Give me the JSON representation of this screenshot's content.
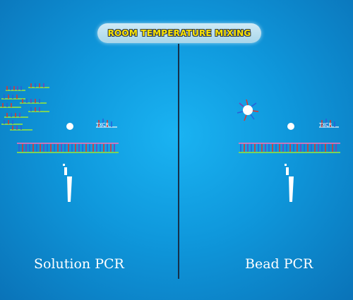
{
  "header": {
    "title": "ROOM TEMPERATURE MIXING"
  },
  "panels": [
    {
      "label": "Solution PCR",
      "primer_tag": "TXCR"
    },
    {
      "label": "Bead PCR",
      "primer_tag": "TXCR"
    }
  ],
  "colors": {
    "background": "#1294d8",
    "title_text": "#ffe400",
    "title_pill": "#bfe2f1",
    "dna_red": "#e0342b",
    "dna_blue": "#2b5fd9",
    "dna_green": "#7ad35b",
    "dna_purple": "#7b3fb5"
  }
}
